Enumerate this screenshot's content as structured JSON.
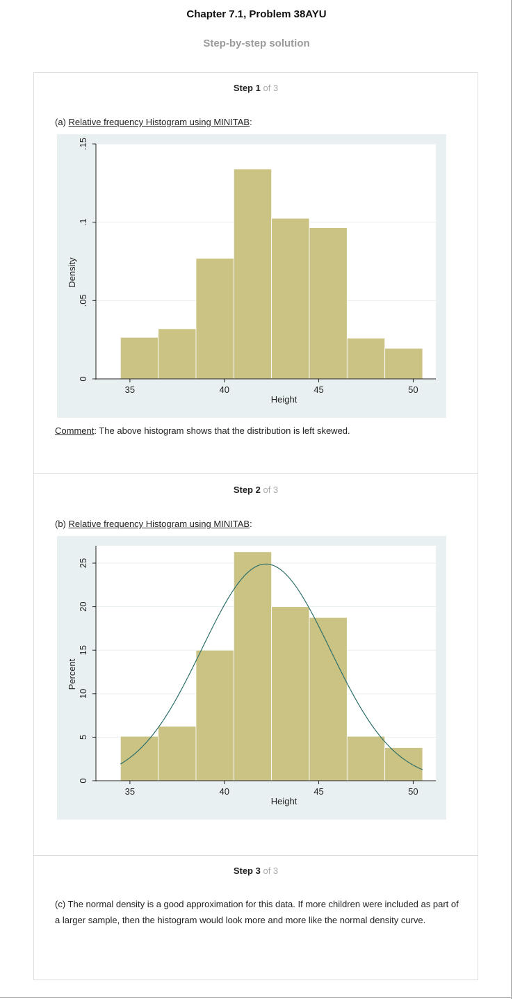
{
  "header": {
    "title": "Chapter 7.1, Problem 38AYU",
    "subtitle": "Step-by-step solution"
  },
  "steps": [
    {
      "label": "Step 1",
      "of": "of 3",
      "intro_prefix": "(a) ",
      "intro_link": "Relative frequency Histogram using MINITAB",
      "intro_suffix": ":",
      "comment_label": "Comment",
      "comment_text": ": The above histogram shows that the distribution is left skewed."
    },
    {
      "label": "Step 2",
      "of": "of 3",
      "intro_prefix": "(b) ",
      "intro_link": "Relative frequency Histogram using MINITAB",
      "intro_suffix": ":"
    },
    {
      "label": "Step 3",
      "of": "of 3",
      "text": "(c) The normal density is a good approximation for this data. If more children were included as part of a larger sample, then the histogram would look more and more like the normal density curve."
    }
  ],
  "chart_data": [
    {
      "type": "bar",
      "xlabel": "Height",
      "ylabel": "Density",
      "bin_edges": [
        34.5,
        36.5,
        38.5,
        40.5,
        42.5,
        44.5,
        46.5,
        48.5,
        50.5
      ],
      "values": [
        0.0265,
        0.032,
        0.077,
        0.134,
        0.1025,
        0.0965,
        0.026,
        0.0195
      ],
      "xlim": [
        33.2,
        51.2
      ],
      "ylim": [
        0,
        0.15
      ],
      "xticks": [
        35,
        40,
        45,
        50
      ],
      "xtick_labels": [
        "35",
        "40",
        "45",
        "50"
      ],
      "yticks": [
        0,
        0.05,
        0.1,
        0.15
      ],
      "ytick_labels": [
        "0",
        ".05",
        ".1",
        ".15"
      ],
      "grid": true,
      "bar_color": "#cbc383"
    },
    {
      "type": "bar",
      "xlabel": "Height",
      "ylabel": "Percent",
      "bin_edges": [
        34.5,
        36.5,
        38.5,
        40.5,
        42.5,
        44.5,
        46.5,
        48.5,
        50.5
      ],
      "values": [
        5.1,
        6.25,
        15,
        26.3,
        20,
        18.75,
        5.1,
        3.8
      ],
      "xlim": [
        33.2,
        51.2
      ],
      "ylim": [
        0,
        27
      ],
      "xticks": [
        35,
        40,
        45,
        50
      ],
      "xtick_labels": [
        "35",
        "40",
        "45",
        "50"
      ],
      "yticks": [
        0,
        5,
        10,
        15,
        20,
        25
      ],
      "ytick_labels": [
        "0",
        "5",
        "10",
        "15",
        "20",
        "25"
      ],
      "grid": true,
      "bar_color": "#cbc383",
      "normal_curve": {
        "mean": 42.2,
        "sd": 3.4,
        "peak": 24.9,
        "color": "#2e6f6a"
      }
    }
  ]
}
